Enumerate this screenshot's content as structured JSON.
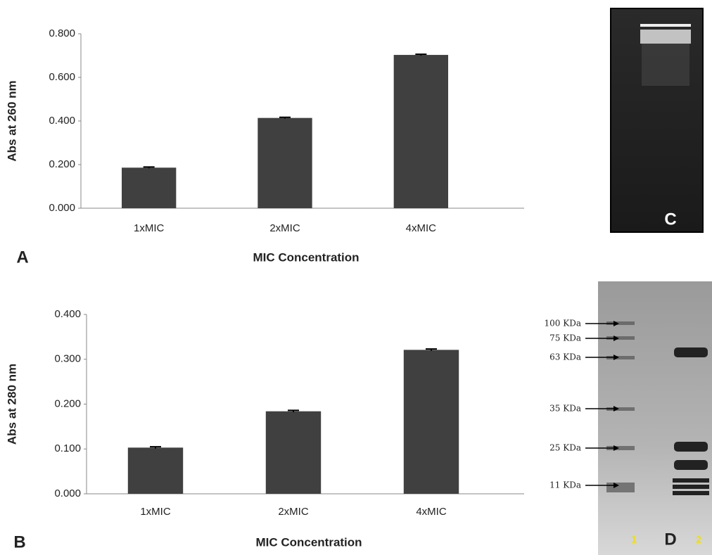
{
  "chart_data": [
    {
      "type": "bar",
      "panel_label": "A",
      "y_label": "Abs at 260 nm",
      "x_label": "MIC Concentration",
      "categories": [
        "1xMIC",
        "2xMIC",
        "4xMIC"
      ],
      "values": [
        0.186,
        0.414,
        0.703
      ],
      "errors": [
        0.003,
        0.003,
        0.003
      ],
      "color": "#404040",
      "ylim": [
        0,
        0.8
      ],
      "yticks": [
        {
          "value": 0,
          "label": "0.000"
        },
        {
          "value": 0.2,
          "label": "0.200"
        },
        {
          "value": 0.4,
          "label": "0.400"
        },
        {
          "value": 0.6,
          "label": "0.600"
        },
        {
          "value": 0.8,
          "label": "0.800"
        }
      ]
    },
    {
      "type": "bar",
      "panel_label": "B",
      "y_label": "Abs at 280 nm",
      "x_label": "MIC Concentration",
      "categories": [
        "1xMIC",
        "2xMIC",
        "4xMIC"
      ],
      "values": [
        0.103,
        0.184,
        0.321
      ],
      "errors": [
        0.002,
        0.002,
        0.002
      ],
      "color": "#404040",
      "ylim": [
        0,
        0.4
      ],
      "yticks": [
        {
          "value": 0,
          "label": "0.000"
        },
        {
          "value": 0.1,
          "label": "0.100"
        },
        {
          "value": 0.2,
          "label": "0.200"
        },
        {
          "value": 0.3,
          "label": "0.300"
        },
        {
          "value": 0.4,
          "label": "0.400"
        }
      ]
    }
  ],
  "images": [
    {
      "label": "C"
    },
    {
      "label": "D",
      "markers": [
        "100 KDa",
        "75 KDa",
        "63 KDa",
        "35 KDa",
        "25 KDa",
        "11 KDa"
      ],
      "lanes": [
        "1",
        "2"
      ]
    }
  ]
}
